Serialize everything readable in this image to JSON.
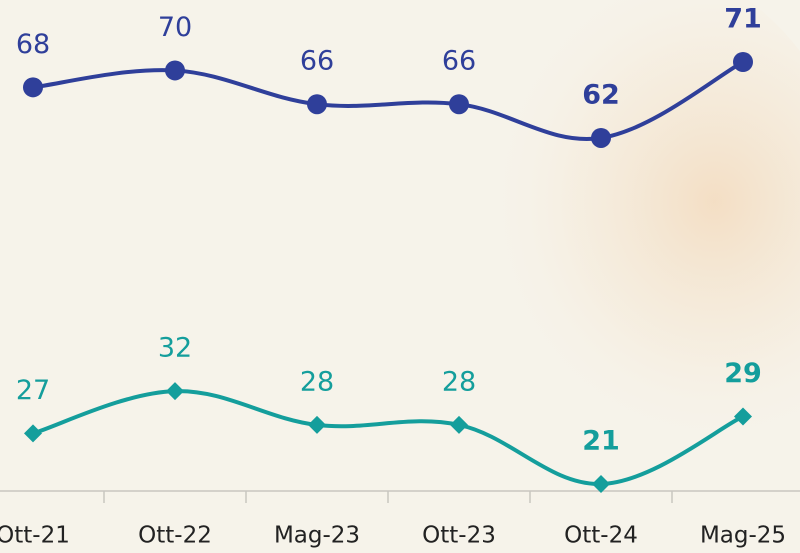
{
  "chart_data": {
    "type": "line",
    "categories": [
      "Ott-21",
      "Ott-22",
      "Mag-23",
      "Ott-23",
      "Ott-24",
      "Mag-25"
    ],
    "series": [
      {
        "color": "#2f3f9a",
        "marker": "circle",
        "values": [
          68,
          70,
          66,
          66,
          62,
          71
        ]
      },
      {
        "color": "#149e9c",
        "marker": "diamond",
        "values": [
          27,
          32,
          28,
          28,
          21,
          29
        ]
      }
    ]
  }
}
